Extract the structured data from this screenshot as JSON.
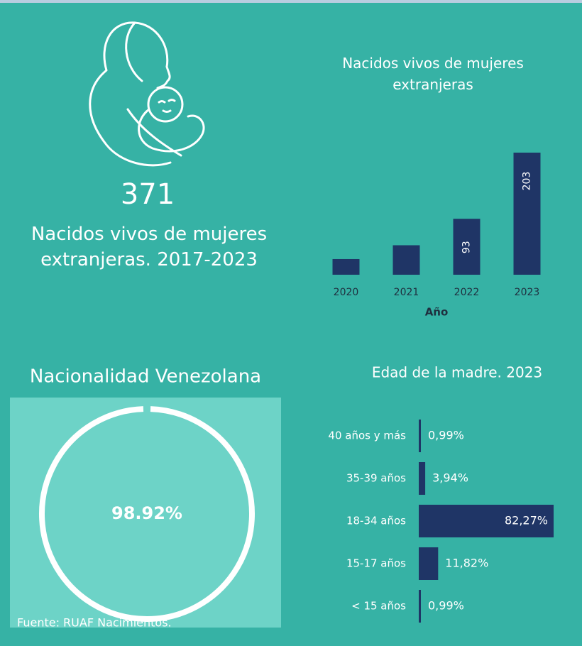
{
  "kpi": {
    "value": 371,
    "label": "Nacidos vivos de mujeres extranjeras. 2017-2023"
  },
  "chart_data": [
    {
      "type": "bar",
      "title": "Nacidos vivos de mujeres extranjeras",
      "x_label": "Año",
      "categories": [
        "2020",
        "2021",
        "2022",
        "2023"
      ],
      "values": [
        26,
        49,
        93,
        203
      ],
      "color": "#1f3566"
    },
    {
      "type": "donut",
      "title": "Nacionalidad Venezolana",
      "values": [
        98.92
      ],
      "value_labels": [
        "98.92%"
      ],
      "color": "#ffffff"
    },
    {
      "type": "hbar",
      "title": "Edad de la madre. 2023",
      "categories": [
        "40 años y más",
        "35-39 años",
        "18-34 años",
        "15-17 años",
        "< 15 años"
      ],
      "values": [
        0.99,
        3.94,
        82.27,
        11.82,
        0.99
      ],
      "value_labels": [
        "0,99%",
        "3,94%",
        "82,27%",
        "11,82%",
        "0,99%"
      ],
      "color": "#1f3566"
    }
  ],
  "source": "Fuente: RUAF Nacimientos."
}
